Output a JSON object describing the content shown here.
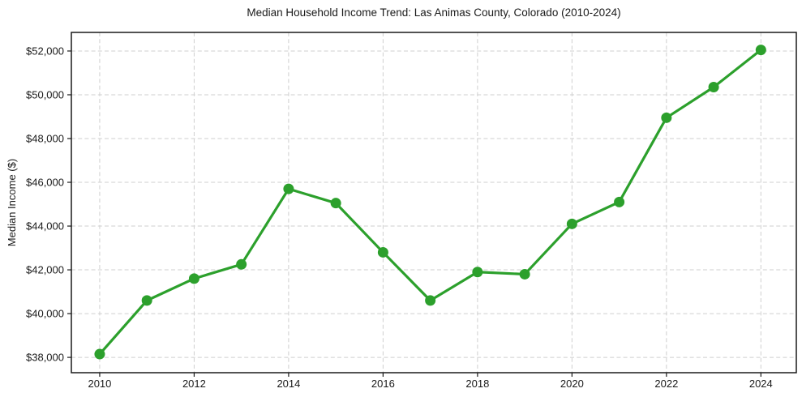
{
  "chart_data": {
    "type": "line",
    "title": "Median Household Income Trend: Las Animas County, Colorado (2010-2024)",
    "xlabel": "",
    "ylabel": "Median Income ($)",
    "x": [
      2010,
      2011,
      2012,
      2013,
      2014,
      2015,
      2016,
      2017,
      2018,
      2019,
      2020,
      2021,
      2022,
      2023,
      2024
    ],
    "values": [
      38150,
      40600,
      41600,
      42250,
      45700,
      45050,
      42800,
      40600,
      41900,
      41800,
      44100,
      45100,
      48950,
      50350,
      52050
    ],
    "xticks": [
      2010,
      2012,
      2014,
      2016,
      2018,
      2020,
      2022,
      2024
    ],
    "xtick_labels": [
      "2010",
      "2012",
      "2014",
      "2016",
      "2018",
      "2020",
      "2022",
      "2024"
    ],
    "yticks": [
      38000,
      40000,
      42000,
      44000,
      46000,
      48000,
      50000,
      52000
    ],
    "ytick_labels": [
      "$38,000",
      "$40,000",
      "$42,000",
      "$44,000",
      "$46,000",
      "$48,000",
      "$50,000",
      "$52,000"
    ],
    "xlim": [
      2009.4,
      2024.75
    ],
    "ylim": [
      37300,
      52850
    ],
    "grid": "dashed",
    "grid_color": "#cfcfcf",
    "line_color": "#2ca02c",
    "marker": "circle",
    "marker_size": 6.5,
    "line_width": 3.2,
    "axis_color": "#1a1a1a",
    "background_color": "#ffffff",
    "legend": "none"
  }
}
